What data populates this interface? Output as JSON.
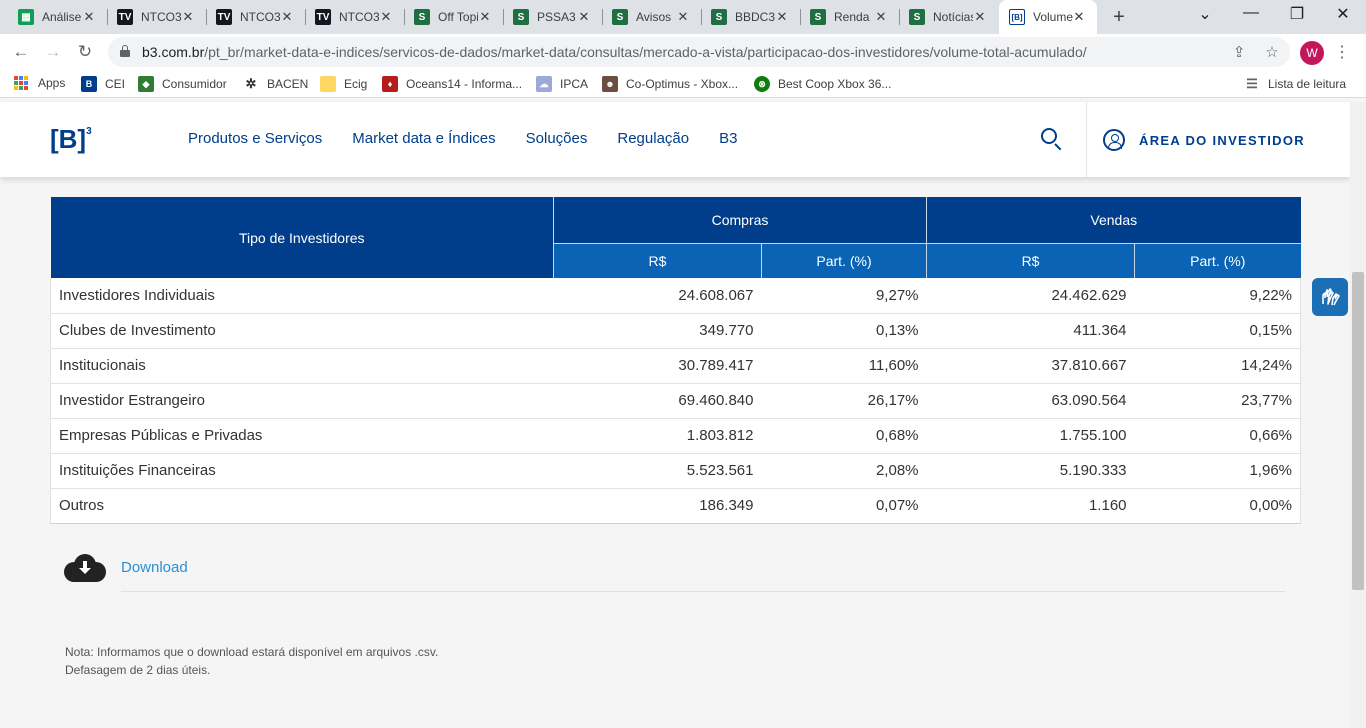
{
  "browser": {
    "tabs": [
      {
        "label": "Análise",
        "icon": "sheets-icon"
      },
      {
        "label": "NTCO3",
        "icon": "tradingview-icon"
      },
      {
        "label": "NTCO3",
        "icon": "tradingview-icon"
      },
      {
        "label": "NTCO3",
        "icon": "tradingview-icon"
      },
      {
        "label": "Off Topic",
        "icon": "s-site-icon"
      },
      {
        "label": "PSSA3",
        "icon": "s-site-icon"
      },
      {
        "label": "Avisos",
        "icon": "s-site-icon"
      },
      {
        "label": "BBDC3",
        "icon": "s-site-icon"
      },
      {
        "label": "Renda",
        "icon": "s-site-icon"
      },
      {
        "label": "Notícias",
        "icon": "s-site-icon"
      },
      {
        "label": "Volume",
        "icon": "b3-icon",
        "active": true
      }
    ],
    "url_host": "b3.com.br",
    "url_path": "/pt_br/market-data-e-indices/servicos-de-dados/market-data/consultas/mercado-a-vista/participacao-dos-investidores/volume-total-acumulado/",
    "profile_initial": "W",
    "bookmarks": [
      "Apps",
      "CEI",
      "Consumidor",
      "BACEN",
      "Ecig",
      "Oceans14 - Informa...",
      "IPCA",
      "Co-Optimus - Xbox...",
      "Best Coop Xbox 36..."
    ],
    "reading_list": "Lista de leitura"
  },
  "site": {
    "logo": "[B]",
    "logo_sup": "3",
    "nav": [
      "Produtos e Serviços",
      "Market data e Índices",
      "Soluções",
      "Regulação",
      "B3"
    ],
    "investor_area": "ÁREA DO INVESTIDOR"
  },
  "table": {
    "col_type": "Tipo de Investidores",
    "group_buy": "Compras",
    "group_sell": "Vendas",
    "sub_value": "R$",
    "sub_share": "Part. (%)",
    "rows": [
      {
        "type": "Investidores Individuais",
        "buy_value": "24.608.067",
        "buy_share": "9,27%",
        "sell_value": "24.462.629",
        "sell_share": "9,22%"
      },
      {
        "type": "Clubes de Investimento",
        "buy_value": "349.770",
        "buy_share": "0,13%",
        "sell_value": "411.364",
        "sell_share": "0,15%"
      },
      {
        "type": "Institucionais",
        "buy_value": "30.789.417",
        "buy_share": "11,60%",
        "sell_value": "37.810.667",
        "sell_share": "14,24%"
      },
      {
        "type": "Investidor Estrangeiro",
        "buy_value": "69.460.840",
        "buy_share": "26,17%",
        "sell_value": "63.090.564",
        "sell_share": "23,77%"
      },
      {
        "type": "Empresas Públicas e Privadas",
        "buy_value": "1.803.812",
        "buy_share": "0,68%",
        "sell_value": "1.755.100",
        "sell_share": "0,66%"
      },
      {
        "type": "Instituições Financeiras",
        "buy_value": "5.523.561",
        "buy_share": "2,08%",
        "sell_value": "5.190.333",
        "sell_share": "1,96%"
      },
      {
        "type": "Outros",
        "buy_value": "186.349",
        "buy_share": "0,07%",
        "sell_value": "1.160",
        "sell_share": "0,00%"
      }
    ]
  },
  "download_label": "Download",
  "note_line1": "Nota: Informamos que o download estará disponível em arquivos .csv.",
  "note_line2": "Defasagem de 2 dias úteis.",
  "colors": {
    "brand_dark": "#003e8c",
    "brand_mid": "#0a63b4",
    "link": "#2c8fd6"
  }
}
